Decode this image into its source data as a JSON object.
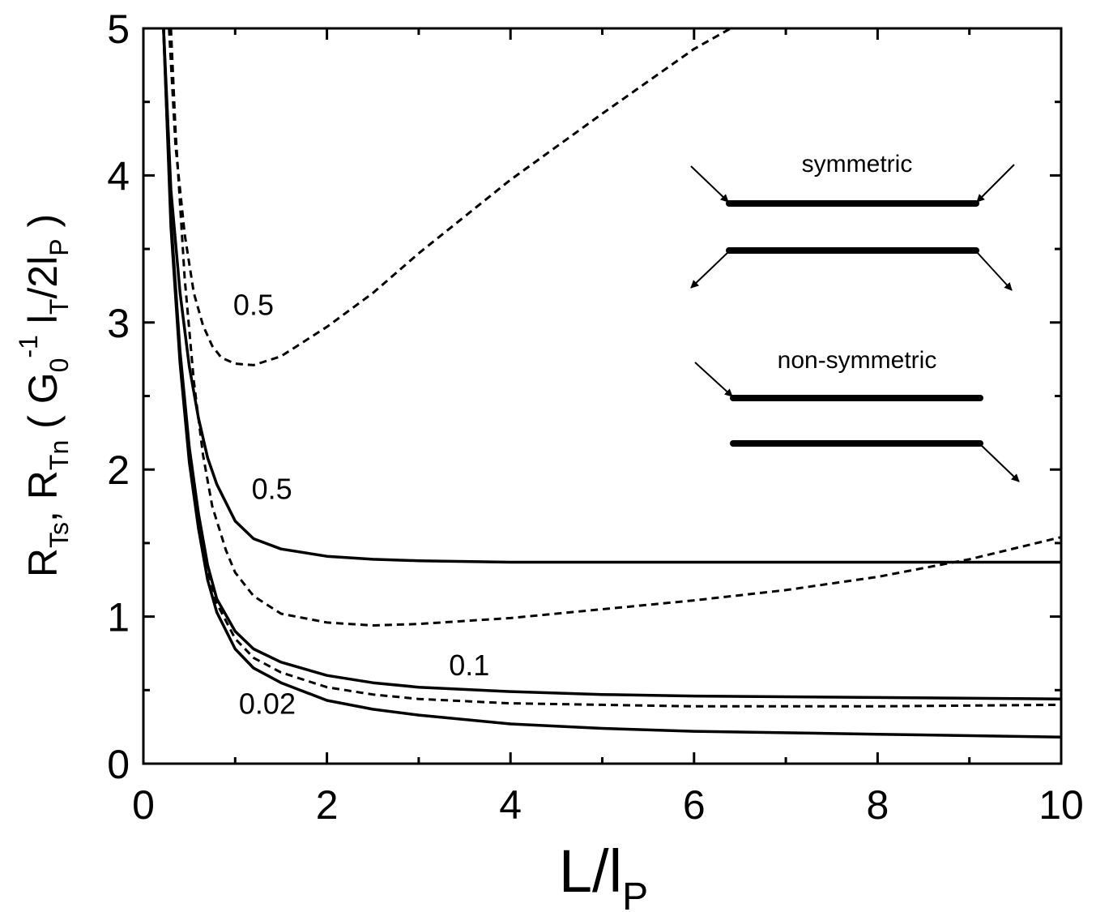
{
  "chart_data": {
    "type": "line",
    "xlim": [
      0,
      10
    ],
    "ylim": [
      0,
      5
    ],
    "x_ticks": [
      "0",
      "2",
      "4",
      "6",
      "8",
      "10"
    ],
    "y_ticks": [
      "0",
      "1",
      "2",
      "3",
      "4",
      "5"
    ],
    "xlabel": {
      "main": "L/l",
      "sub": "P"
    },
    "ylabel": {
      "parts": [
        "R",
        "Ts",
        ", R",
        "Tn",
        " ( G",
        "0",
        "-1",
        " l",
        "T",
        "/2l",
        "P",
        " )"
      ]
    },
    "grid": false,
    "legend": "none",
    "series": [
      {
        "style": "solid",
        "x": [
          0.22,
          0.3,
          0.4,
          0.5,
          0.6,
          0.7,
          0.8,
          1.0,
          1.2,
          1.5,
          2.0,
          2.5,
          3.0,
          4.0,
          5.0,
          6.0,
          8.0,
          10.0
        ],
        "y": [
          5.0,
          3.9,
          3.2,
          2.7,
          2.35,
          2.08,
          1.9,
          1.65,
          1.53,
          1.46,
          1.41,
          1.39,
          1.38,
          1.37,
          1.37,
          1.37,
          1.37,
          1.37
        ]
      },
      {
        "style": "solid",
        "x": [
          0.22,
          0.3,
          0.4,
          0.5,
          0.6,
          0.7,
          0.8,
          1.0,
          1.2,
          1.5,
          2.0,
          2.5,
          3.0,
          4.0,
          5.0,
          6.0,
          8.0,
          10.0
        ],
        "y": [
          5.0,
          3.7,
          2.8,
          2.15,
          1.7,
          1.35,
          1.12,
          0.9,
          0.78,
          0.69,
          0.6,
          0.55,
          0.52,
          0.49,
          0.47,
          0.46,
          0.45,
          0.44
        ]
      },
      {
        "style": "solid",
        "x": [
          0.22,
          0.3,
          0.4,
          0.5,
          0.6,
          0.7,
          0.8,
          1.0,
          1.2,
          1.5,
          2.0,
          2.5,
          3.0,
          4.0,
          5.0,
          6.0,
          8.0,
          10.0
        ],
        "y": [
          5.0,
          3.65,
          2.72,
          2.05,
          1.6,
          1.25,
          1.03,
          0.78,
          0.65,
          0.55,
          0.43,
          0.37,
          0.33,
          0.27,
          0.24,
          0.22,
          0.2,
          0.18
        ]
      },
      {
        "style": "dashed",
        "x": [
          0.28,
          0.35,
          0.45,
          0.55,
          0.65,
          0.75,
          0.85,
          1.0,
          1.2,
          1.5,
          2.0,
          2.5,
          3.0,
          4.0,
          5.0,
          6.0,
          6.4
        ],
        "y": [
          5.0,
          4.2,
          3.6,
          3.2,
          2.98,
          2.84,
          2.76,
          2.72,
          2.71,
          2.77,
          2.97,
          3.2,
          3.47,
          3.97,
          4.42,
          4.86,
          5.0
        ]
      },
      {
        "style": "dashed",
        "x": [
          0.3,
          0.35,
          0.45,
          0.55,
          0.65,
          0.75,
          0.9,
          1.0,
          1.2,
          1.5,
          2.0,
          2.5,
          3.0,
          3.5,
          4.0,
          5.0,
          6.0,
          7.0,
          8.0,
          9.0,
          10.0
        ],
        "y": [
          5.0,
          4.3,
          3.3,
          2.6,
          2.1,
          1.75,
          1.45,
          1.3,
          1.14,
          1.02,
          0.96,
          0.94,
          0.95,
          0.97,
          0.99,
          1.05,
          1.11,
          1.18,
          1.27,
          1.39,
          1.54
        ]
      },
      {
        "style": "dashed",
        "x": [
          0.22,
          0.3,
          0.4,
          0.5,
          0.6,
          0.7,
          0.8,
          1.0,
          1.2,
          1.5,
          2.0,
          2.5,
          3.0,
          4.0,
          5.0,
          6.0,
          8.0,
          10.0
        ],
        "y": [
          5.0,
          3.68,
          2.78,
          2.12,
          1.66,
          1.32,
          1.09,
          0.85,
          0.72,
          0.62,
          0.52,
          0.47,
          0.44,
          0.41,
          0.4,
          0.39,
          0.39,
          0.4
        ]
      }
    ],
    "annotations": [
      {
        "text": "0.5",
        "x": 1.2,
        "y": 3.05
      },
      {
        "text": "0.5",
        "x": 1.4,
        "y": 1.8
      },
      {
        "text": "0.1",
        "x": 3.55,
        "y": 0.6
      },
      {
        "text": "0.02",
        "x": 1.35,
        "y": 0.34
      }
    ]
  },
  "inset": {
    "symmetric_label": "symmetric",
    "non_symmetric_label": "non-symmetric"
  },
  "colors": {
    "line": "#000000",
    "background": "#ffffff"
  }
}
